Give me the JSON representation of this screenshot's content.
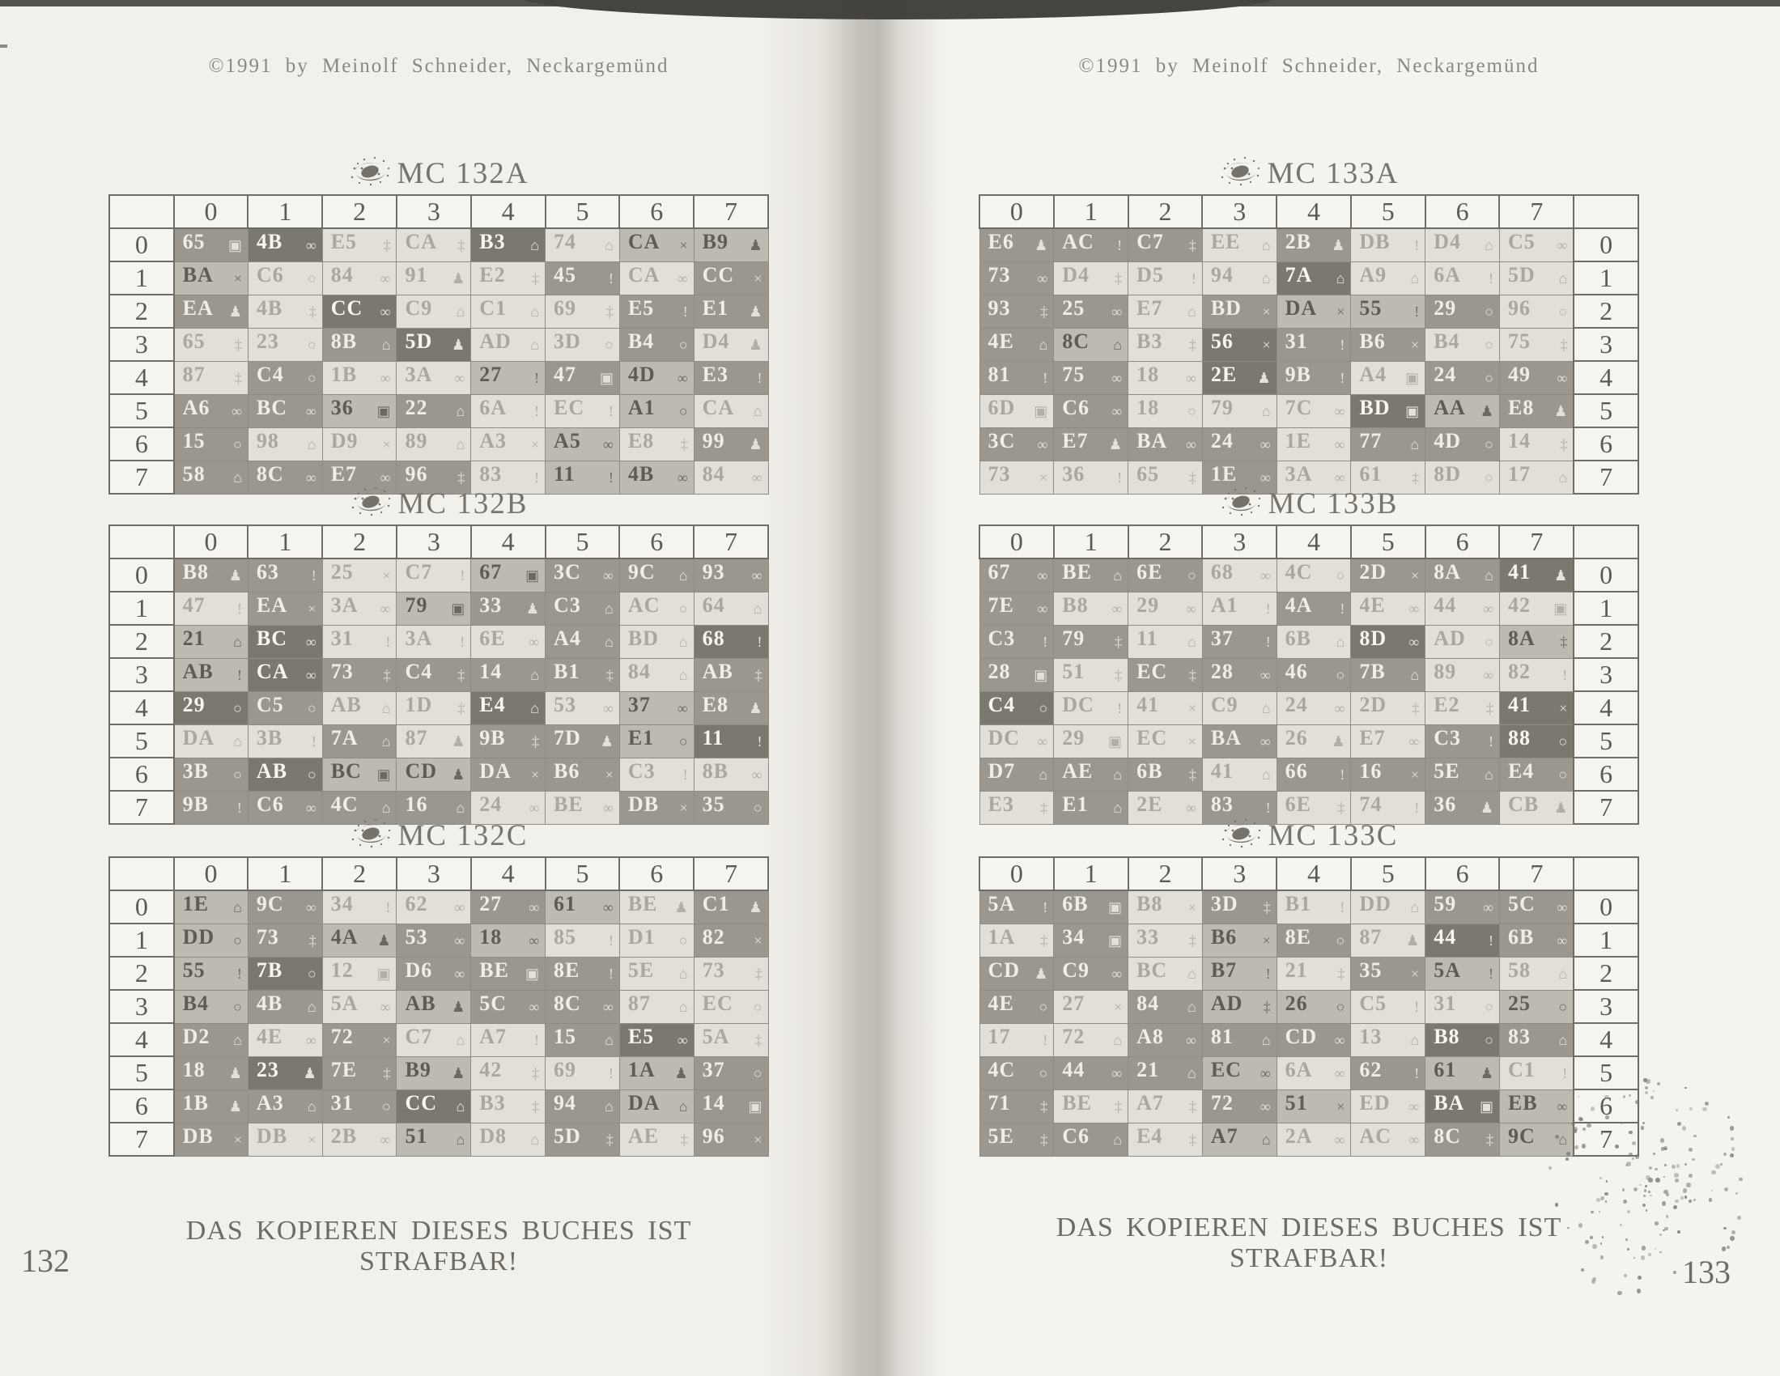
{
  "book": {
    "copyright": "©1991 by Meinolf Schneider, Neckargemünd",
    "footer_warning": "DAS KOPIEREN DIESES BUCHES IST STRAFBAR!",
    "left_page_number": "132",
    "right_page_number": "133"
  },
  "column_headers": [
    "0",
    "1",
    "2",
    "3",
    "4",
    "5",
    "6",
    "7"
  ],
  "row_headers": [
    "0",
    "1",
    "2",
    "3",
    "4",
    "5",
    "6",
    "7"
  ],
  "icon_glyphs": {
    "inf": "∞",
    "x": "×",
    "o": "○",
    "per": "♟",
    "key": "‡",
    "case": "⌂",
    "exc": "!",
    "sq": "▣"
  },
  "icon_names": {
    "inf": "infinity-icon",
    "x": "x-mark-icon",
    "o": "circle-icon",
    "per": "person-icon",
    "key": "key-icon",
    "case": "briefcase-icon",
    "exc": "exclamation-icon",
    "sq": "square-icon"
  },
  "shade_palette": {
    "light": "#e2dfd9",
    "medium": "#bdbab2",
    "dark": "#9b978e",
    "darkest": "#7b7870",
    "paper": "#f3f1ec",
    "ink": "#6e6b64"
  },
  "tables": [
    {
      "title": "MC 132A",
      "page": "left",
      "slot": 0,
      "cells": [
        [
          "65|sq|d",
          "4B|inf|k",
          "E5|key|l",
          "CA|key|l",
          "B3|case|k",
          "74|case|l",
          "CA|x|m",
          "B9|per|m"
        ],
        [
          "BA|x|m",
          "C6|o|l",
          "84|inf|l",
          "91|per|l",
          "E2|key|l",
          "45|exc|d",
          "CA|inf|l",
          "CC|x|d"
        ],
        [
          "EA|per|d",
          "4B|key|l",
          "CC|inf|k",
          "C9|case|l",
          "C1|case|l",
          "69|key|l",
          "E5|exc|d",
          "E1|per|d"
        ],
        [
          "65|key|l",
          "23|o|l",
          "8B|case|d",
          "5D|per|k",
          "AD|case|l",
          "3D|o|l",
          "B4|o|d",
          "D4|per|l"
        ],
        [
          "87|key|l",
          "C4|o|d",
          "1B|inf|l",
          "3A|inf|l",
          "27|exc|m",
          "47|sq|d",
          "4D|inf|m",
          "E3|exc|d"
        ],
        [
          "A6|inf|d",
          "BC|inf|d",
          "36|sq|m",
          "22|case|d",
          "6A|exc|l",
          "EC|exc|l",
          "A1|o|m",
          "CA|case|l"
        ],
        [
          "15|o|d",
          "98|case|l",
          "D9|x|l",
          "89|case|l",
          "A3|x|l",
          "A5|inf|m",
          "E8|key|l",
          "99|per|d"
        ],
        [
          "58|case|d",
          "8C|inf|d",
          "E7|inf|d",
          "96|key|d",
          "83|exc|l",
          "11|exc|m",
          "4B|inf|m",
          "84|inf|l"
        ]
      ]
    },
    {
      "title": "MC 132B",
      "page": "left",
      "slot": 1,
      "cells": [
        [
          "B8|per|d",
          "63|exc|d",
          "25|x|l",
          "C7|exc|l",
          "67|sq|m",
          "3C|inf|d",
          "9C|case|d",
          "93|inf|d"
        ],
        [
          "47|exc|l",
          "EA|x|d",
          "3A|inf|l",
          "79|sq|m",
          "33|per|d",
          "C3|case|d",
          "AC|o|l",
          "64|case|l"
        ],
        [
          "21|case|m",
          "BC|inf|k",
          "31|exc|l",
          "3A|exc|l",
          "6E|inf|l",
          "A4|case|d",
          "BD|case|l",
          "68|exc|k"
        ],
        [
          "AB|exc|m",
          "CA|inf|k",
          "73|key|d",
          "C4|key|d",
          "14|case|d",
          "B1|key|d",
          "84|case|l",
          "AB|key|d"
        ],
        [
          "29|o|k",
          "C5|o|d",
          "AB|case|l",
          "1D|key|l",
          "E4|case|k",
          "53|inf|l",
          "37|inf|m",
          "E8|per|d"
        ],
        [
          "DA|case|l",
          "3B|exc|l",
          "7A|case|d",
          "87|per|l",
          "9B|key|d",
          "7D|per|d",
          "E1|o|m",
          "11|exc|k"
        ],
        [
          "3B|o|d",
          "AB|o|k",
          "BC|sq|m",
          "CD|per|m",
          "DA|x|d",
          "B6|x|d",
          "C3|exc|l",
          "8B|inf|l"
        ],
        [
          "9B|exc|d",
          "C6|inf|d",
          "4C|case|d",
          "16|case|d",
          "24|inf|l",
          "BE|inf|l",
          "DB|x|d",
          "35|o|d"
        ]
      ]
    },
    {
      "title": "MC 132C",
      "page": "left",
      "slot": 2,
      "cells": [
        [
          "1E|case|m",
          "9C|inf|d",
          "34|exc|l",
          "62|inf|l",
          "27|inf|d",
          "61|inf|m",
          "BE|per|l",
          "C1|per|d"
        ],
        [
          "DD|o|m",
          "73|key|d",
          "4A|per|m",
          "53|inf|d",
          "18|inf|m",
          "85|exc|l",
          "D1|o|l",
          "82|x|d"
        ],
        [
          "55|exc|m",
          "7B|o|k",
          "12|sq|l",
          "D6|inf|d",
          "BE|sq|d",
          "8E|exc|d",
          "5E|case|l",
          "73|key|l"
        ],
        [
          "B4|o|m",
          "4B|case|d",
          "5A|inf|l",
          "AB|per|m",
          "5C|inf|d",
          "8C|inf|d",
          "87|case|l",
          "EC|o|l"
        ],
        [
          "D2|case|d",
          "4E|inf|l",
          "72|x|d",
          "C7|case|l",
          "A7|exc|l",
          "15|case|d",
          "E5|inf|k",
          "5A|key|l"
        ],
        [
          "18|per|d",
          "23|per|k",
          "7E|key|d",
          "B9|per|m",
          "42|key|l",
          "69|exc|l",
          "1A|per|m",
          "37|o|d"
        ],
        [
          "1B|per|d",
          "A3|case|d",
          "31|o|d",
          "CC|case|k",
          "B3|key|l",
          "94|case|d",
          "DA|case|m",
          "14|sq|d"
        ],
        [
          "DB|x|d",
          "DB|x|l",
          "2B|inf|l",
          "51|case|m",
          "D8|case|l",
          "5D|key|d",
          "AE|key|l",
          "96|x|d"
        ]
      ]
    },
    {
      "title": "MC 133A",
      "page": "right",
      "slot": 0,
      "cells": [
        [
          "E6|per|d",
          "AC|exc|d",
          "C7|key|d",
          "EE|case|l",
          "2B|per|d",
          "DB|exc|l",
          "D4|case|l",
          "C5|inf|l"
        ],
        [
          "73|inf|d",
          "D4|key|l",
          "D5|exc|l",
          "94|case|l",
          "7A|case|k",
          "A9|case|l",
          "6A|exc|l",
          "5D|case|l"
        ],
        [
          "93|key|d",
          "25|inf|d",
          "E7|case|l",
          "BD|x|d",
          "DA|x|m",
          "55|exc|m",
          "29|o|d",
          "96|o|l"
        ],
        [
          "4E|case|d",
          "8C|case|m",
          "B3|key|l",
          "56|x|k",
          "31|exc|d",
          "B6|x|d",
          "B4|o|l",
          "75|key|l"
        ],
        [
          "81|exc|d",
          "75|inf|d",
          "18|inf|l",
          "2E|per|k",
          "9B|exc|d",
          "A4|sq|l",
          "24|o|d",
          "49|inf|d"
        ],
        [
          "6D|sq|l",
          "C6|inf|d",
          "18|o|l",
          "79|case|l",
          "7C|inf|l",
          "BD|sq|k",
          "AA|per|m",
          "E8|per|d"
        ],
        [
          "3C|inf|d",
          "E7|per|d",
          "BA|inf|d",
          "24|inf|d",
          "1E|inf|l",
          "77|case|d",
          "4D|o|d",
          "14|key|l"
        ],
        [
          "73|x|l",
          "36|exc|l",
          "65|key|l",
          "1E|inf|d",
          "3A|inf|l",
          "61|key|l",
          "8D|o|l",
          "17|case|l"
        ]
      ]
    },
    {
      "title": "MC 133B",
      "page": "right",
      "slot": 1,
      "cells": [
        [
          "67|inf|d",
          "BE|case|d",
          "6E|o|d",
          "68|inf|l",
          "4C|o|l",
          "2D|x|d",
          "8A|case|d",
          "41|per|k"
        ],
        [
          "7E|inf|d",
          "B8|inf|l",
          "29|inf|l",
          "A1|exc|l",
          "4A|exc|d",
          "4E|inf|l",
          "44|inf|l",
          "42|sq|l"
        ],
        [
          "C3|exc|d",
          "79|key|d",
          "11|case|l",
          "37|exc|d",
          "6B|case|l",
          "8D|inf|k",
          "AD|o|l",
          "8A|key|m"
        ],
        [
          "28|sq|d",
          "51|key|l",
          "EC|key|d",
          "28|inf|d",
          "46|o|d",
          "7B|case|d",
          "89|inf|l",
          "82|exc|l"
        ],
        [
          "C4|o|k",
          "DC|exc|l",
          "41|x|l",
          "C9|case|l",
          "24|inf|l",
          "2D|key|l",
          "E2|key|l",
          "41|x|k"
        ],
        [
          "DC|inf|l",
          "29|sq|l",
          "EC|x|l",
          "BA|inf|d",
          "26|per|l",
          "E7|inf|l",
          "C3|exc|d",
          "88|o|k"
        ],
        [
          "D7|case|d",
          "AE|case|d",
          "6B|key|d",
          "41|case|l",
          "66|exc|d",
          "16|x|d",
          "5E|case|d",
          "E4|o|d"
        ],
        [
          "E3|key|l",
          "E1|case|d",
          "2E|inf|l",
          "83|exc|d",
          "6E|key|l",
          "74|exc|l",
          "36|per|d",
          "CB|per|l"
        ]
      ]
    },
    {
      "title": "MC 133C",
      "page": "right",
      "slot": 2,
      "cells": [
        [
          "5A|exc|d",
          "6B|sq|d",
          "B8|x|l",
          "3D|key|d",
          "B1|exc|l",
          "DD|case|l",
          "59|inf|d",
          "5C|inf|d"
        ],
        [
          "1A|key|l",
          "34|sq|d",
          "33|key|l",
          "B6|x|m",
          "8E|o|d",
          "87|per|l",
          "44|exc|k",
          "6B|inf|d"
        ],
        [
          "CD|per|d",
          "C9|inf|d",
          "BC|case|l",
          "B7|exc|m",
          "21|key|l",
          "35|x|d",
          "5A|exc|m",
          "58|case|l"
        ],
        [
          "4E|o|d",
          "27|x|l",
          "84|case|d",
          "AD|key|m",
          "26|o|m",
          "C5|exc|l",
          "31|o|l",
          "25|o|m"
        ],
        [
          "17|exc|l",
          "72|case|l",
          "A8|inf|d",
          "81|case|d",
          "CD|inf|d",
          "13|case|l",
          "B8|o|k",
          "83|case|d"
        ],
        [
          "4C|o|d",
          "44|inf|d",
          "21|case|d",
          "EC|inf|m",
          "6A|inf|l",
          "62|exc|d",
          "61|per|m",
          "C1|exc|l"
        ],
        [
          "71|key|d",
          "BE|key|l",
          "A7|key|l",
          "72|inf|d",
          "51|x|m",
          "ED|inf|l",
          "BA|sq|k",
          "EB|inf|m"
        ],
        [
          "5E|key|d",
          "C6|case|d",
          "E4|key|l",
          "A7|case|m",
          "2A|inf|l",
          "AC|inf|l",
          "8C|key|d",
          "9C|case|m"
        ]
      ]
    }
  ]
}
